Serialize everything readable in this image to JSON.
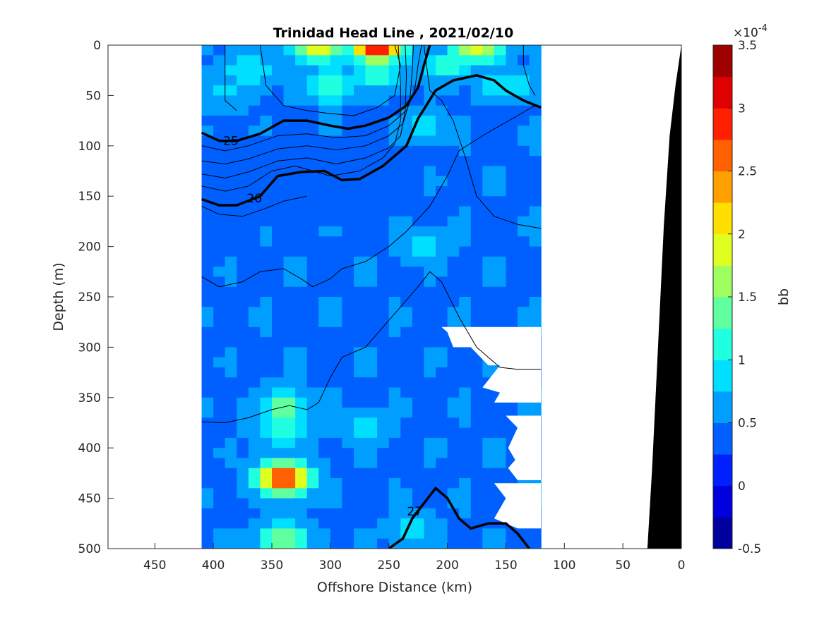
{
  "chart_data": {
    "type": "heatmap",
    "title": "Trinidad Head Line , 2021/02/10",
    "xlabel": "Offshore Distance (km)",
    "ylabel": "Depth (m)",
    "xlim": [
      490,
      0
    ],
    "ylim": [
      0,
      500
    ],
    "x_reversed": true,
    "y_reversed": true,
    "x_ticks": [
      450,
      400,
      350,
      300,
      250,
      200,
      150,
      100,
      50,
      0
    ],
    "y_ticks": [
      0,
      50,
      100,
      150,
      200,
      250,
      300,
      350,
      400,
      450,
      500
    ],
    "data_extent_x": [
      410,
      120
    ],
    "colorbar": {
      "label": "bb",
      "exponent_label": "×10",
      "exponent_power": "-4",
      "range": [
        -0.5,
        3.5
      ],
      "ticks": [
        "-0.5",
        "0",
        "0.5",
        "1",
        "1.5",
        "2",
        "2.5",
        "3",
        "3.5"
      ],
      "levels": 16,
      "colormap": "jet"
    },
    "background_level": 0.45,
    "blobs": [
      {
        "x": 260,
        "y": 0,
        "value": 3.3
      },
      {
        "x": 175,
        "y": 2,
        "value": 1.9
      },
      {
        "x": 310,
        "y": 2,
        "value": 1.9
      },
      {
        "x": 300,
        "y": 40,
        "value": 1.3
      },
      {
        "x": 260,
        "y": 30,
        "value": 1.2
      },
      {
        "x": 200,
        "y": 20,
        "value": 1.1
      },
      {
        "x": 370,
        "y": 25,
        "value": 1.0
      },
      {
        "x": 390,
        "y": 45,
        "value": 0.9
      },
      {
        "x": 150,
        "y": 40,
        "value": 1.0
      },
      {
        "x": 340,
        "y": 430,
        "value": 3.0
      },
      {
        "x": 340,
        "y": 360,
        "value": 1.4
      },
      {
        "x": 340,
        "y": 380,
        "value": 1.3
      },
      {
        "x": 340,
        "y": 490,
        "value": 1.5
      },
      {
        "x": 220,
        "y": 80,
        "value": 0.85
      },
      {
        "x": 300,
        "y": 160,
        "value": 0.2
      },
      {
        "x": 220,
        "y": 200,
        "value": 0.8
      },
      {
        "x": 270,
        "y": 380,
        "value": 0.8
      },
      {
        "x": 230,
        "y": 480,
        "value": 0.85
      }
    ],
    "low_band": {
      "y_top": 85,
      "y_bottom": 190,
      "value": 0.05
    },
    "isopycnals": [
      {
        "label": "25",
        "bold": true,
        "label_at": [
          385,
          95
        ],
        "points": [
          [
            410,
            87
          ],
          [
            395,
            95
          ],
          [
            380,
            95
          ],
          [
            360,
            88
          ],
          [
            340,
            75
          ],
          [
            320,
            75
          ],
          [
            300,
            80
          ],
          [
            285,
            83
          ],
          [
            270,
            80
          ],
          [
            250,
            72
          ],
          [
            235,
            60
          ],
          [
            225,
            42
          ],
          [
            220,
            20
          ],
          [
            215,
            0
          ]
        ]
      },
      {
        "label": "26",
        "bold": true,
        "label_at": [
          365,
          152
        ],
        "points": [
          [
            410,
            153
          ],
          [
            395,
            159
          ],
          [
            380,
            159
          ],
          [
            360,
            150
          ],
          [
            345,
            130
          ],
          [
            325,
            126
          ],
          [
            305,
            125
          ],
          [
            290,
            134
          ],
          [
            275,
            133
          ],
          [
            255,
            120
          ],
          [
            235,
            100
          ],
          [
            225,
            73
          ],
          [
            210,
            45
          ],
          [
            195,
            35
          ],
          [
            175,
            30
          ],
          [
            160,
            35
          ],
          [
            150,
            45
          ],
          [
            135,
            55
          ],
          [
            120,
            62
          ]
        ]
      },
      {
        "label": "27",
        "bold": true,
        "label_at": [
          228,
          463
        ],
        "points": [
          [
            250,
            500
          ],
          [
            238,
            490
          ],
          [
            230,
            470
          ],
          [
            220,
            455
          ],
          [
            210,
            440
          ],
          [
            200,
            450
          ],
          [
            190,
            470
          ],
          [
            180,
            480
          ],
          [
            165,
            475
          ],
          [
            150,
            475
          ],
          [
            140,
            485
          ],
          [
            130,
            500
          ]
        ]
      },
      {
        "label": "",
        "bold": false,
        "points": [
          [
            410,
            100
          ],
          [
            390,
            105
          ],
          [
            370,
            100
          ],
          [
            345,
            90
          ],
          [
            320,
            88
          ],
          [
            295,
            92
          ],
          [
            270,
            90
          ],
          [
            250,
            80
          ],
          [
            235,
            65
          ],
          [
            228,
            45
          ],
          [
            225,
            20
          ],
          [
            222,
            0
          ]
        ]
      },
      {
        "label": "",
        "bold": false,
        "points": [
          [
            410,
            115
          ],
          [
            390,
            118
          ],
          [
            370,
            113
          ],
          [
            345,
            103
          ],
          [
            320,
            100
          ],
          [
            295,
            104
          ],
          [
            270,
            100
          ],
          [
            250,
            90
          ],
          [
            238,
            78
          ],
          [
            232,
            55
          ],
          [
            230,
            25
          ],
          [
            229,
            0
          ]
        ]
      },
      {
        "label": "",
        "bold": false,
        "points": [
          [
            410,
            128
          ],
          [
            390,
            132
          ],
          [
            370,
            126
          ],
          [
            345,
            115
          ],
          [
            320,
            112
          ],
          [
            295,
            118
          ],
          [
            270,
            112
          ],
          [
            250,
            102
          ],
          [
            240,
            90
          ],
          [
            236,
            65
          ],
          [
            235,
            30
          ],
          [
            236,
            0
          ]
        ]
      },
      {
        "label": "",
        "bold": false,
        "points": [
          [
            410,
            140
          ],
          [
            390,
            145
          ],
          [
            370,
            140
          ],
          [
            350,
            125
          ],
          [
            330,
            120
          ],
          [
            300,
            130
          ],
          [
            275,
            125
          ],
          [
            255,
            112
          ],
          [
            245,
            98
          ],
          [
            240,
            75
          ],
          [
            240,
            40
          ],
          [
            242,
            0
          ]
        ]
      },
      {
        "label": "",
        "bold": false,
        "points": [
          [
            360,
            0
          ],
          [
            355,
            40
          ],
          [
            340,
            60
          ],
          [
            320,
            65
          ],
          [
            300,
            68
          ],
          [
            280,
            70
          ],
          [
            260,
            62
          ],
          [
            245,
            50
          ],
          [
            240,
            20
          ],
          [
            245,
            0
          ]
        ]
      },
      {
        "label": "",
        "bold": false,
        "points": [
          [
            390,
            0
          ],
          [
            390,
            55
          ],
          [
            380,
            65
          ]
        ]
      },
      {
        "label": "",
        "bold": false,
        "points": [
          [
            135,
            0
          ],
          [
            135,
            20
          ],
          [
            130,
            40
          ],
          [
            125,
            50
          ]
        ]
      },
      {
        "label": "",
        "bold": false,
        "points": [
          [
            410,
            160
          ],
          [
            395,
            168
          ],
          [
            375,
            170
          ],
          [
            355,
            162
          ],
          [
            340,
            155
          ],
          [
            320,
            150
          ]
        ]
      },
      {
        "label": "",
        "bold": false,
        "points": [
          [
            120,
            182
          ],
          [
            140,
            178
          ],
          [
            160,
            170
          ],
          [
            175,
            150
          ],
          [
            185,
            110
          ],
          [
            195,
            75
          ],
          [
            205,
            55
          ],
          [
            215,
            45
          ],
          [
            220,
            0
          ]
        ]
      },
      {
        "label": "",
        "bold": false,
        "points": [
          [
            410,
            374
          ],
          [
            390,
            375
          ],
          [
            370,
            370
          ],
          [
            350,
            362
          ],
          [
            335,
            358
          ],
          [
            320,
            362
          ],
          [
            310,
            355
          ],
          [
            300,
            330
          ],
          [
            290,
            310
          ],
          [
            270,
            300
          ],
          [
            255,
            280
          ],
          [
            240,
            260
          ],
          [
            225,
            240
          ],
          [
            215,
            225
          ],
          [
            205,
            235
          ],
          [
            190,
            270
          ],
          [
            175,
            300
          ],
          [
            155,
            320
          ],
          [
            140,
            322
          ],
          [
            120,
            322
          ]
        ]
      },
      {
        "label": "",
        "bold": false,
        "points": [
          [
            410,
            230
          ],
          [
            395,
            240
          ],
          [
            375,
            235
          ],
          [
            360,
            225
          ],
          [
            340,
            222
          ],
          [
            325,
            232
          ],
          [
            315,
            240
          ],
          [
            300,
            232
          ],
          [
            290,
            222
          ],
          [
            270,
            215
          ],
          [
            250,
            200
          ],
          [
            235,
            185
          ],
          [
            215,
            160
          ],
          [
            200,
            130
          ],
          [
            190,
            105
          ],
          [
            170,
            90
          ],
          [
            155,
            80
          ],
          [
            140,
            70
          ],
          [
            125,
            60
          ]
        ]
      }
    ],
    "gaps": [
      {
        "points": [
          [
            205,
            280
          ],
          [
            200,
            285
          ],
          [
            195,
            300
          ],
          [
            180,
            300
          ],
          [
            165,
            318
          ],
          [
            155,
            318
          ],
          [
            170,
            340
          ],
          [
            155,
            345
          ],
          [
            160,
            355
          ],
          [
            120,
            355
          ],
          [
            120,
            280
          ]
        ]
      },
      {
        "points": [
          [
            165,
            368
          ],
          [
            150,
            368
          ],
          [
            140,
            380
          ],
          [
            148,
            400
          ],
          [
            142,
            412
          ],
          [
            148,
            420
          ],
          [
            140,
            432
          ],
          [
            120,
            432
          ],
          [
            120,
            368
          ]
        ]
      },
      {
        "points": [
          [
            160,
            435
          ],
          [
            150,
            450
          ],
          [
            160,
            470
          ],
          [
            140,
            480
          ],
          [
            120,
            480
          ],
          [
            120,
            435
          ]
        ]
      }
    ],
    "bathymetry": {
      "points": [
        [
          0,
          0
        ],
        [
          5,
          40
        ],
        [
          10,
          90
        ],
        [
          15,
          180
        ],
        [
          20,
          300
        ],
        [
          25,
          420
        ],
        [
          29,
          500
        ]
      ],
      "color": "#000000"
    }
  }
}
